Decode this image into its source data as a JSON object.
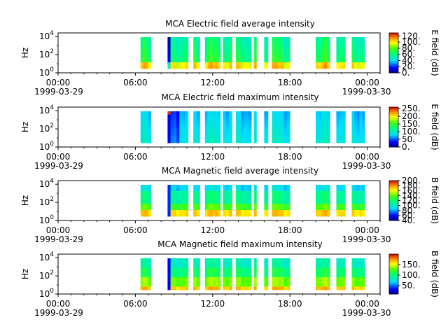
{
  "figure": {
    "x_tick_labels": [
      "00:00",
      "06:00",
      "12:00",
      "18:00",
      "00:00"
    ],
    "x_date_labels": [
      "1999-03-29",
      "1999-03-30"
    ]
  },
  "chart_data": [
    {
      "type": "heatmap",
      "title": "MCA  Electric field average intensity",
      "ylabel": "Hz",
      "y_scale": "log",
      "y_tick_labels": [
        "10^0",
        "10^2",
        "10^4"
      ],
      "xlim": [
        "1999-03-29 00:00",
        "1999-03-30 01:00"
      ],
      "colorbar": {
        "label": "E field (dB)",
        "ticks": [
          "0.",
          "20.",
          "40.",
          "60.",
          "80.",
          "100.",
          "120."
        ],
        "range": [
          0,
          130
        ]
      },
      "data_intervals_hours": [
        [
          6.4,
          7.2
        ],
        [
          8.5,
          10.1
        ],
        [
          10.5,
          11.0
        ],
        [
          11.4,
          12.6
        ],
        [
          12.8,
          13.5
        ],
        [
          13.8,
          15.0
        ],
        [
          15.2,
          15.4
        ],
        [
          16.0,
          16.3
        ],
        [
          16.6,
          18.0
        ],
        [
          20.0,
          21.1
        ],
        [
          21.6,
          22.3
        ],
        [
          22.8,
          23.8
        ]
      ],
      "palette": "rainbow (blue-cyan-green-yellow-red)"
    },
    {
      "type": "heatmap",
      "title": "MCA  Electric field maximum intensity",
      "ylabel": "Hz",
      "y_scale": "log",
      "y_tick_labels": [
        "10^0",
        "10^2",
        "10^4"
      ],
      "xlim": [
        "1999-03-29 00:00",
        "1999-03-30 01:00"
      ],
      "colorbar": {
        "label": "E field (dB)",
        "ticks": [
          "0.",
          "50.",
          "100.",
          "150.",
          "200.",
          "250."
        ],
        "range": [
          0,
          260
        ]
      },
      "data_intervals_hours": [
        [
          6.4,
          7.2
        ],
        [
          8.5,
          10.1
        ],
        [
          10.5,
          11.0
        ],
        [
          11.4,
          12.6
        ],
        [
          12.8,
          13.5
        ],
        [
          13.8,
          15.0
        ],
        [
          15.2,
          15.4
        ],
        [
          16.0,
          16.3
        ],
        [
          16.6,
          18.0
        ],
        [
          20.0,
          21.1
        ],
        [
          21.6,
          22.3
        ],
        [
          22.8,
          23.8
        ]
      ],
      "palette": "rainbow (blue-cyan-green-yellow-red)"
    },
    {
      "type": "heatmap",
      "title": "MCA  Magnetic field average intensity",
      "ylabel": "Hz",
      "y_scale": "log",
      "y_tick_labels": [
        "10^0",
        "10^2",
        "10^4"
      ],
      "xlim": [
        "1999-03-29 00:00",
        "1999-03-30 01:00"
      ],
      "colorbar": {
        "label": "B field (dB)",
        "ticks": [
          "40.",
          "60.",
          "80.",
          "100.",
          "120.",
          "140.",
          "160.",
          "180.",
          "200."
        ],
        "range": [
          40,
          200
        ]
      },
      "data_intervals_hours": [
        [
          6.4,
          7.2
        ],
        [
          8.5,
          10.1
        ],
        [
          10.5,
          11.0
        ],
        [
          11.4,
          12.6
        ],
        [
          12.8,
          13.5
        ],
        [
          13.8,
          15.0
        ],
        [
          15.2,
          15.4
        ],
        [
          16.0,
          16.3
        ],
        [
          16.6,
          18.0
        ],
        [
          20.0,
          21.1
        ],
        [
          21.6,
          22.3
        ],
        [
          22.8,
          23.8
        ]
      ],
      "palette": "rainbow (blue-cyan-green-yellow-red)"
    },
    {
      "type": "heatmap",
      "title": "MCA  Magnetic field maximum intensity",
      "ylabel": "Hz",
      "y_scale": "log",
      "y_tick_labels": [
        "10^0",
        "10^2",
        "10^4"
      ],
      "xlim": [
        "1999-03-29 00:00",
        "1999-03-30 01:00"
      ],
      "colorbar": {
        "label": "B field (dB)",
        "ticks": [
          "50.",
          "100.",
          "150."
        ],
        "range": [
          10,
          200
        ]
      },
      "data_intervals_hours": [
        [
          6.4,
          7.2
        ],
        [
          8.5,
          10.1
        ],
        [
          10.5,
          11.0
        ],
        [
          11.4,
          12.6
        ],
        [
          12.8,
          13.5
        ],
        [
          13.8,
          15.0
        ],
        [
          15.2,
          15.4
        ],
        [
          16.0,
          16.3
        ],
        [
          16.6,
          18.0
        ],
        [
          20.0,
          21.1
        ],
        [
          21.6,
          22.3
        ],
        [
          22.8,
          23.8
        ]
      ],
      "palette": "rainbow (blue-cyan-green-yellow-red)"
    }
  ]
}
